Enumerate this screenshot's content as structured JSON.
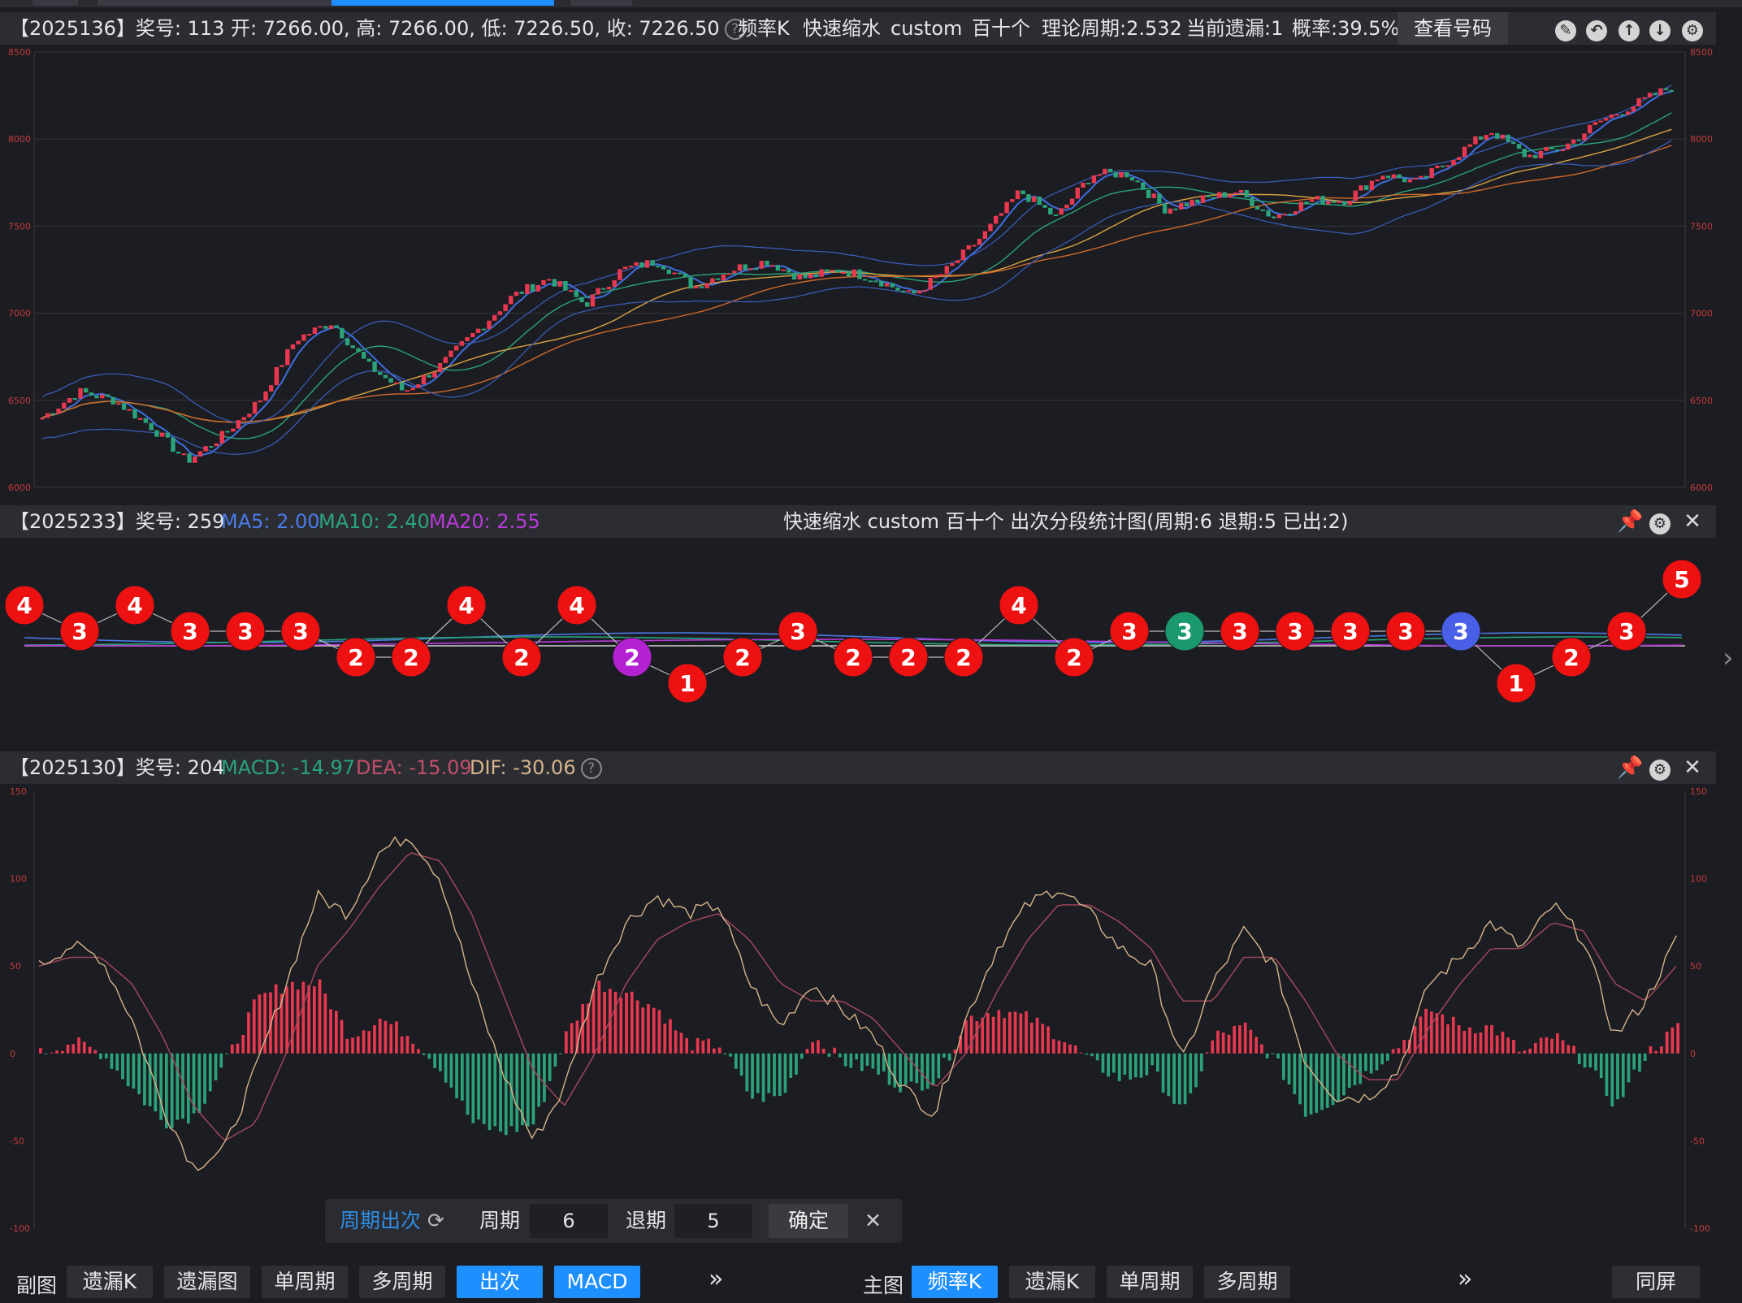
{
  "header_main": {
    "left_text": "【2025136】奖号: 113  开: 7266.00, 高: 7266.00, 低: 7226.50, 收: 7226.50",
    "mode1": "频率K",
    "mode2": "快速缩水",
    "mode3": "custom",
    "mode4": "百十个",
    "theory": "理论周期:2.532",
    "missing": "当前遗漏:1",
    "prob": "概率:39.5%",
    "view_btn": "查看号码"
  },
  "main_axis": {
    "ticks": [
      "8500",
      "8000",
      "7500",
      "7000",
      "6500",
      "6000"
    ]
  },
  "header_sub": {
    "id": "【2025233】奖号: 259",
    "ma5": "MA5: 2.00",
    "ma10": "MA10: 2.40",
    "ma20": "MA20: 2.55",
    "center": "快速缩水  custom    百十个  出次分段统计图(周期:6  退期:5 已出:2)"
  },
  "header_macd": {
    "id": "【2025130】奖号: 204",
    "macd": "MACD: -14.97",
    "dea": "DEA: -15.09",
    "dif": "DIF: -30.06"
  },
  "macd_axis": {
    "ticks": [
      "150",
      "100",
      "50",
      "0",
      "-50",
      "-100"
    ]
  },
  "popup": {
    "title": "周期出次",
    "period_label": "周期",
    "period_value": "6",
    "back_label": "退期",
    "back_value": "5",
    "ok": "确定"
  },
  "bottombar": {
    "left_label": "副图",
    "left_buttons": [
      "遗漏K",
      "遗漏图",
      "单周期",
      "多周期",
      "出次",
      "MACD"
    ],
    "more1": "»",
    "right_label": "主图",
    "right_buttons": [
      "频率K",
      "遗漏K",
      "单周期",
      "多周期"
    ],
    "more2": "»",
    "same_screen": "同屏"
  },
  "colors": {
    "up": "#e8384f",
    "down": "#2aa37a",
    "accent": "#1e8fff",
    "ma_blue": "#4a7be8",
    "ma_green": "#2aa37a",
    "ma_purple": "#b83ad8"
  },
  "chart_data": [
    {
      "type": "candlestick",
      "ylim": [
        6000,
        8500
      ],
      "y_ticks": [
        6000,
        6500,
        7000,
        7500,
        8000,
        8500
      ],
      "trend_close": [
        6400,
        6550,
        6500,
        6350,
        6150,
        6300,
        6500,
        6850,
        6950,
        6700,
        6550,
        6700,
        6900,
        7100,
        7200,
        7050,
        7250,
        7300,
        7150,
        7250,
        7300,
        7200,
        7250,
        7200,
        7100,
        7250,
        7450,
        7700,
        7550,
        7800,
        7800,
        7600,
        7650,
        7700,
        7550,
        7650,
        7650,
        7800,
        7750,
        7900,
        8050,
        7900,
        7950,
        8100,
        8200,
        8300
      ],
      "series": [
        {
          "name": "MA",
          "values": [
            6300,
            6400,
            6420,
            6350,
            6250,
            6300,
            6450,
            6700,
            6800,
            6700,
            6600,
            6680,
            6850,
            7000,
            7100,
            7100,
            7200,
            7250,
            7200,
            7220,
            7240,
            7220,
            7220,
            7200,
            7150,
            7200,
            7350,
            7550,
            7550,
            7700,
            7700,
            7650,
            7650,
            7650,
            7600,
            7620,
            7650,
            7700,
            7720,
            7820,
            7920,
            7900,
            7950,
            8050,
            8100,
            8150
          ]
        }
      ]
    },
    {
      "type": "scatter",
      "title": "出次分段统计图",
      "points": [
        4,
        3,
        4,
        3,
        3,
        3,
        2,
        2,
        4,
        2,
        4,
        2,
        1,
        2,
        3,
        2,
        2,
        2,
        4,
        2,
        3,
        3,
        3,
        3,
        3,
        3,
        3,
        1,
        2,
        3,
        5
      ],
      "point_colors": [
        "red",
        "red",
        "red",
        "red",
        "red",
        "red",
        "red",
        "red",
        "red",
        "red",
        "red",
        "purple",
        "red",
        "red",
        "red",
        "red",
        "red",
        "red",
        "red",
        "red",
        "red",
        "green",
        "red",
        "red",
        "red",
        "red",
        "blue",
        "red",
        "red",
        "red",
        "red"
      ]
    },
    {
      "type": "bar",
      "title": "MACD",
      "ylim": [
        -100,
        150
      ],
      "y_ticks": [
        150,
        100,
        50,
        0,
        -50,
        -100
      ],
      "dif": [
        50,
        62,
        55,
        20,
        -30,
        -65,
        -55,
        -10,
        40,
        90,
        80,
        115,
        125,
        100,
        40,
        -10,
        -50,
        -20,
        40,
        75,
        90,
        80,
        85,
        40,
        15,
        40,
        25,
        10,
        -20,
        -35,
        20,
        60,
        85,
        95,
        80,
        60,
        50,
        -5,
        40,
        70,
        50,
        -5,
        -25,
        -25,
        -10,
        40,
        55,
        75,
        60,
        85,
        65,
        10,
        30,
        65
      ],
      "dea": [
        50,
        55,
        55,
        40,
        10,
        -30,
        -50,
        -40,
        0,
        50,
        70,
        95,
        115,
        110,
        80,
        35,
        -10,
        -30,
        0,
        40,
        65,
        75,
        80,
        65,
        40,
        30,
        30,
        20,
        0,
        -20,
        0,
        35,
        65,
        85,
        85,
        75,
        60,
        30,
        30,
        55,
        55,
        30,
        0,
        -15,
        -15,
        15,
        40,
        60,
        60,
        75,
        70,
        40,
        30,
        50
      ]
    }
  ]
}
